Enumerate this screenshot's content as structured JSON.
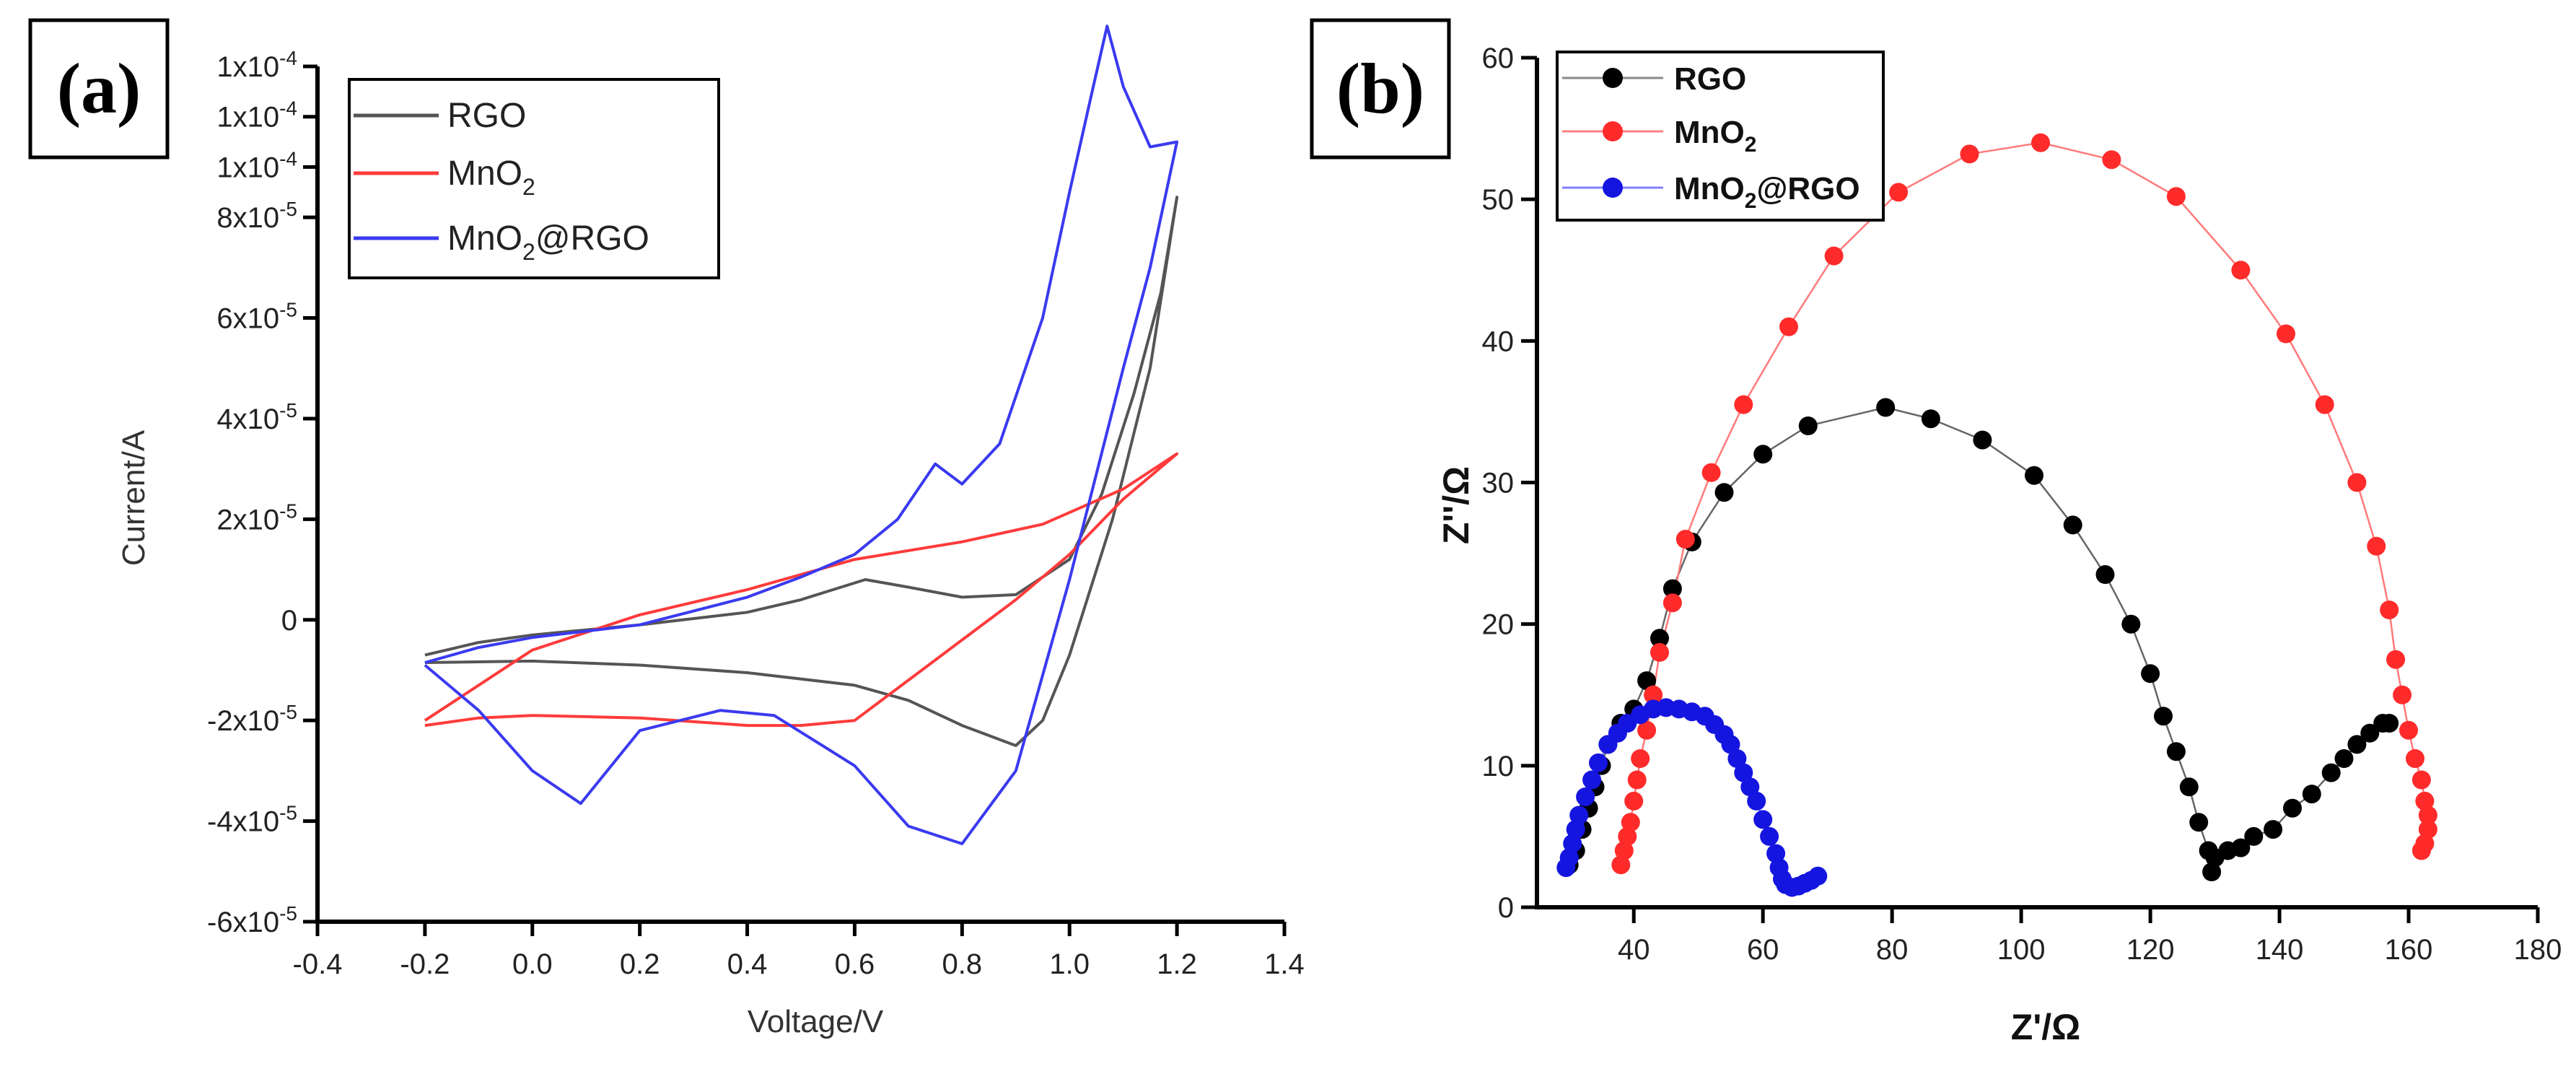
{
  "panels": {
    "a_label": "(a)",
    "b_label": "(b)"
  },
  "chart_data": [
    {
      "type": "line",
      "panel": "(a)",
      "title": "",
      "xlabel": "Voltage/V",
      "ylabel": "Current/A",
      "xlim": [
        -0.4,
        1.4
      ],
      "ylim": [
        -6e-05,
        0.00011
      ],
      "x_ticks": [
        -0.4,
        -0.2,
        0.0,
        0.2,
        0.4,
        0.6,
        0.8,
        1.0,
        1.2,
        1.4
      ],
      "x_tick_labels": [
        "-0.4",
        "-0.2",
        "0.0",
        "0.2",
        "0.4",
        "0.6",
        "0.8",
        "1.0",
        "1.2",
        "1.4"
      ],
      "y_tick_values": [
        -6e-05,
        -4e-05,
        -2e-05,
        0,
        2e-05,
        4e-05,
        6e-05,
        8e-05,
        9e-05,
        0.0001,
        0.00011
      ],
      "y_tick_mantissa": [
        "-6",
        "-4",
        "-2",
        "",
        "2",
        "4",
        "6",
        "8",
        "1",
        "1",
        "1"
      ],
      "y_tick_exponent": [
        "-5",
        "-5",
        "-5",
        "",
        "-5",
        "-5",
        "-5",
        "-5",
        "-4",
        "-4",
        "-4"
      ],
      "y_zero_label": "0",
      "legend": {
        "position": "top-left"
      },
      "series": [
        {
          "name": "RGO",
          "name_sub": "",
          "name_tail": "",
          "color": "#555555",
          "points": [
            [
              -0.2,
              -7e-06
            ],
            [
              -0.1,
              -4.5e-06
            ],
            [
              0.0,
              -3e-06
            ],
            [
              0.2,
              -1e-06
            ],
            [
              0.4,
              1.5e-06
            ],
            [
              0.5,
              4e-06
            ],
            [
              0.62,
              8e-06
            ],
            [
              0.7,
              6.5e-06
            ],
            [
              0.8,
              4.5e-06
            ],
            [
              0.9,
              5e-06
            ],
            [
              1.0,
              1.2e-05
            ],
            [
              1.06,
              2.5e-05
            ],
            [
              1.12,
              4.5e-05
            ],
            [
              1.17,
              6.5e-05
            ],
            [
              1.2,
              8.4e-05
            ],
            [
              1.15,
              5e-05
            ],
            [
              1.08,
              2e-05
            ],
            [
              1.0,
              -7e-06
            ],
            [
              0.95,
              -2e-05
            ],
            [
              0.9,
              -2.5e-05
            ],
            [
              0.8,
              -2.1e-05
            ],
            [
              0.7,
              -1.6e-05
            ],
            [
              0.6,
              -1.3e-05
            ],
            [
              0.4,
              -1.05e-05
            ],
            [
              0.2,
              -9e-06
            ],
            [
              0.0,
              -8.2e-06
            ],
            [
              -0.2,
              -8.5e-06
            ]
          ]
        },
        {
          "name": "MnO",
          "name_sub": "2",
          "name_tail": "",
          "color": "#ff3b3b",
          "points": [
            [
              -0.2,
              -2e-05
            ],
            [
              0.0,
              -6e-06
            ],
            [
              0.2,
              1e-06
            ],
            [
              0.4,
              6e-06
            ],
            [
              0.5,
              9e-06
            ],
            [
              0.6,
              1.2e-05
            ],
            [
              0.8,
              1.55e-05
            ],
            [
              0.95,
              1.9e-05
            ],
            [
              1.1,
              2.6e-05
            ],
            [
              1.2,
              3.3e-05
            ],
            [
              1.1,
              2.4e-05
            ],
            [
              1.0,
              1.3e-05
            ],
            [
              0.9,
              4e-06
            ],
            [
              0.8,
              -4e-06
            ],
            [
              0.7,
              -1.2e-05
            ],
            [
              0.6,
              -2e-05
            ],
            [
              0.5,
              -2.1e-05
            ],
            [
              0.4,
              -2.1e-05
            ],
            [
              0.2,
              -1.95e-05
            ],
            [
              0.0,
              -1.9e-05
            ],
            [
              -0.1,
              -1.95e-05
            ],
            [
              -0.2,
              -2.1e-05
            ]
          ]
        },
        {
          "name": "MnO",
          "name_sub": "2",
          "name_tail": "@RGO",
          "color": "#3a3af0",
          "points": [
            [
              -0.2,
              -8.5e-06
            ],
            [
              -0.1,
              -5.5e-06
            ],
            [
              0.0,
              -3.5e-06
            ],
            [
              0.2,
              -1e-06
            ],
            [
              0.4,
              4.5e-06
            ],
            [
              0.5,
              8.5e-06
            ],
            [
              0.6,
              1.3e-05
            ],
            [
              0.68,
              2e-05
            ],
            [
              0.75,
              3.1e-05
            ],
            [
              0.8,
              2.7e-05
            ],
            [
              0.87,
              3.5e-05
            ],
            [
              0.95,
              6e-05
            ],
            [
              1.0,
              8.5e-05
            ],
            [
              1.04,
              0.000104
            ],
            [
              1.07,
              0.000118
            ],
            [
              1.1,
              0.000106
            ],
            [
              1.15,
              9.4e-05
            ],
            [
              1.2,
              9.5e-05
            ],
            [
              1.15,
              7e-05
            ],
            [
              1.1,
              5e-05
            ],
            [
              1.0,
              8e-06
            ],
            [
              0.9,
              -3e-05
            ],
            [
              0.8,
              -4.45e-05
            ],
            [
              0.7,
              -4.1e-05
            ],
            [
              0.6,
              -2.9e-05
            ],
            [
              0.45,
              -1.9e-05
            ],
            [
              0.35,
              -1.8e-05
            ],
            [
              0.2,
              -2.2e-05
            ],
            [
              0.09,
              -3.65e-05
            ],
            [
              0.0,
              -3e-05
            ],
            [
              -0.1,
              -1.8e-05
            ],
            [
              -0.2,
              -9e-06
            ]
          ]
        }
      ]
    },
    {
      "type": "scatter",
      "panel": "(b)",
      "title": "",
      "xlabel": "Z'/Ω",
      "ylabel": "Z''/Ω",
      "xlim": [
        25,
        180
      ],
      "ylim": [
        0,
        60
      ],
      "x_ticks": [
        40,
        60,
        80,
        100,
        120,
        140,
        160,
        180
      ],
      "x_tick_labels": [
        "40",
        "60",
        "80",
        "100",
        "120",
        "140",
        "160",
        "180"
      ],
      "y_ticks": [
        0,
        10,
        20,
        30,
        40,
        50,
        60
      ],
      "y_tick_labels": [
        "0",
        "10",
        "20",
        "30",
        "40",
        "50",
        "60"
      ],
      "legend": {
        "position": "top-left"
      },
      "series": [
        {
          "name": "RGO",
          "name_sub": "",
          "name_tail": "",
          "color": "#000000",
          "points": [
            [
              30,
              3
            ],
            [
              31,
              4
            ],
            [
              32,
              5.5
            ],
            [
              33,
              7
            ],
            [
              34,
              8.5
            ],
            [
              35,
              10
            ],
            [
              36,
              11.5
            ],
            [
              38,
              13
            ],
            [
              40,
              14
            ],
            [
              42,
              16
            ],
            [
              44,
              19
            ],
            [
              46,
              22.5
            ],
            [
              49,
              25.8
            ],
            [
              54,
              29.3
            ],
            [
              60,
              32
            ],
            [
              67,
              34
            ],
            [
              79,
              35.3
            ],
            [
              86,
              34.5
            ],
            [
              94,
              33
            ],
            [
              102,
              30.5
            ],
            [
              108,
              27
            ],
            [
              113,
              23.5
            ],
            [
              117,
              20
            ],
            [
              120,
              16.5
            ],
            [
              122,
              13.5
            ],
            [
              124,
              11
            ],
            [
              126,
              8.5
            ],
            [
              127.5,
              6
            ],
            [
              129,
              4
            ],
            [
              129.5,
              2.5
            ],
            [
              130,
              3.5
            ],
            [
              132,
              4
            ],
            [
              134,
              4.2
            ],
            [
              136,
              5
            ],
            [
              139,
              5.5
            ],
            [
              142,
              7
            ],
            [
              145,
              8
            ],
            [
              148,
              9.5
            ],
            [
              150,
              10.5
            ],
            [
              152,
              11.5
            ],
            [
              154,
              12.3
            ],
            [
              156,
              13
            ],
            [
              157,
              13
            ]
          ]
        },
        {
          "name": "MnO",
          "name_sub": "2",
          "name_tail": "",
          "color": "#ff2b2b",
          "points": [
            [
              38,
              3
            ],
            [
              38.5,
              4
            ],
            [
              39,
              5
            ],
            [
              39.5,
              6
            ],
            [
              40,
              7.5
            ],
            [
              40.5,
              9
            ],
            [
              41,
              10.5
            ],
            [
              42,
              12.5
            ],
            [
              43,
              15
            ],
            [
              44,
              18
            ],
            [
              46,
              21.5
            ],
            [
              48,
              26
            ],
            [
              52,
              30.7
            ],
            [
              57,
              35.5
            ],
            [
              64,
              41
            ],
            [
              71,
              46
            ],
            [
              81,
              50.5
            ],
            [
              92,
              53.2
            ],
            [
              103,
              54
            ],
            [
              114,
              52.8
            ],
            [
              124,
              50.2
            ],
            [
              134,
              45
            ],
            [
              141,
              40.5
            ],
            [
              147,
              35.5
            ],
            [
              152,
              30
            ],
            [
              155,
              25.5
            ],
            [
              157,
              21
            ],
            [
              158,
              17.5
            ],
            [
              159,
              15
            ],
            [
              160,
              12.5
            ],
            [
              161,
              10.5
            ],
            [
              162,
              9
            ],
            [
              162.5,
              7.5
            ],
            [
              163,
              6.5
            ],
            [
              163,
              5.5
            ],
            [
              162.5,
              4.5
            ],
            [
              162,
              4
            ]
          ]
        },
        {
          "name": "MnO",
          "name_sub": "2",
          "name_tail": "@RGO",
          "color": "#1515e0",
          "points": [
            [
              29.5,
              2.8
            ],
            [
              30,
              3.5
            ],
            [
              30.5,
              4.5
            ],
            [
              31,
              5.5
            ],
            [
              31.5,
              6.5
            ],
            [
              32.5,
              7.8
            ],
            [
              33.5,
              9
            ],
            [
              34.5,
              10.2
            ],
            [
              36,
              11.5
            ],
            [
              37.5,
              12.3
            ],
            [
              39,
              13
            ],
            [
              41,
              13.6
            ],
            [
              43,
              14
            ],
            [
              45,
              14.1
            ],
            [
              47,
              14
            ],
            [
              49,
              13.8
            ],
            [
              51,
              13.5
            ],
            [
              52.5,
              12.9
            ],
            [
              54,
              12.2
            ],
            [
              55,
              11.5
            ],
            [
              56,
              10.5
            ],
            [
              57,
              9.5
            ],
            [
              58,
              8.5
            ],
            [
              59,
              7.5
            ],
            [
              60,
              6.2
            ],
            [
              61,
              5
            ],
            [
              62,
              3.8
            ],
            [
              62.5,
              2.8
            ],
            [
              63,
              2
            ],
            [
              63.5,
              1.6
            ],
            [
              64.5,
              1.4
            ],
            [
              65.5,
              1.5
            ],
            [
              66.5,
              1.7
            ],
            [
              67.5,
              1.9
            ],
            [
              68.5,
              2.2
            ]
          ]
        }
      ]
    }
  ]
}
